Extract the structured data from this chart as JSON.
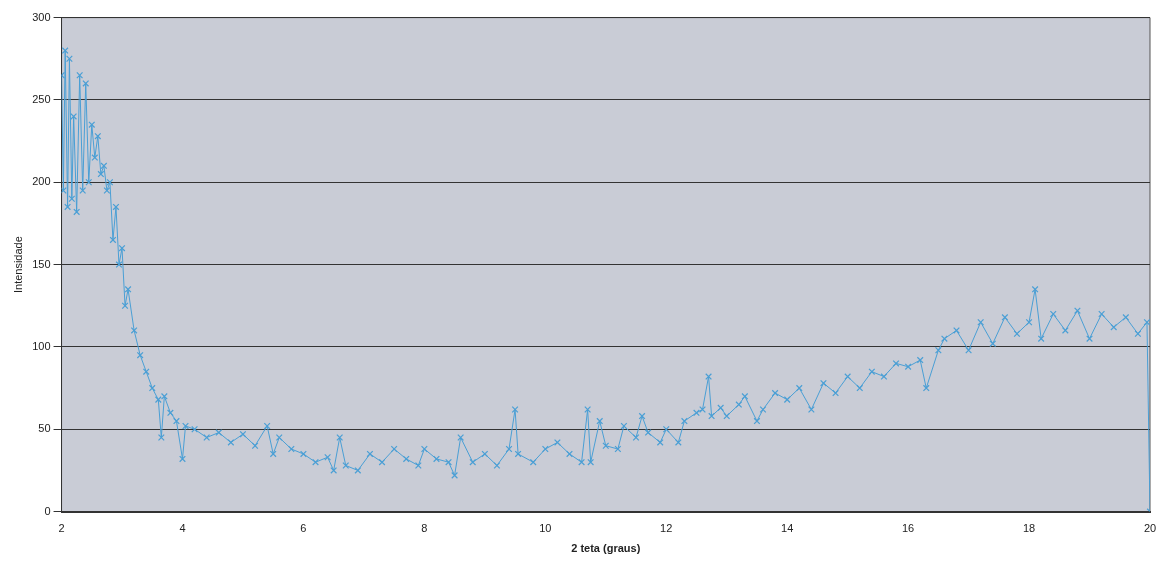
{
  "chart_data": {
    "type": "line",
    "xlabel": "2 teta (graus)",
    "ylabel": "Intensidade",
    "x": [
      2.0,
      2.03,
      2.06,
      2.1,
      2.13,
      2.17,
      2.2,
      2.25,
      2.3,
      2.35,
      2.4,
      2.45,
      2.5,
      2.55,
      2.6,
      2.65,
      2.7,
      2.75,
      2.8,
      2.85,
      2.9,
      2.95,
      3.0,
      3.05,
      3.1,
      3.2,
      3.3,
      3.4,
      3.5,
      3.6,
      3.65,
      3.7,
      3.8,
      3.9,
      4.0,
      4.05,
      4.2,
      4.4,
      4.6,
      4.8,
      5.0,
      5.2,
      5.4,
      5.5,
      5.6,
      5.8,
      6.0,
      6.2,
      6.4,
      6.5,
      6.6,
      6.7,
      6.9,
      7.1,
      7.3,
      7.5,
      7.7,
      7.9,
      8.0,
      8.2,
      8.4,
      8.5,
      8.6,
      8.8,
      9.0,
      9.2,
      9.4,
      9.5,
      9.55,
      9.8,
      10.0,
      10.2,
      10.4,
      10.6,
      10.7,
      10.75,
      10.9,
      11.0,
      11.2,
      11.3,
      11.5,
      11.6,
      11.7,
      11.9,
      12.0,
      12.2,
      12.3,
      12.5,
      12.6,
      12.7,
      12.75,
      12.9,
      13.0,
      13.2,
      13.3,
      13.5,
      13.6,
      13.8,
      14.0,
      14.2,
      14.4,
      14.6,
      14.8,
      15.0,
      15.2,
      15.4,
      15.6,
      15.8,
      16.0,
      16.2,
      16.3,
      16.5,
      16.6,
      16.8,
      17.0,
      17.2,
      17.4,
      17.6,
      17.8,
      18.0,
      18.1,
      18.2,
      18.4,
      18.6,
      18.8,
      19.0,
      19.2,
      19.4,
      19.6,
      19.8,
      19.95,
      20.0
    ],
    "series": [
      {
        "color": "#4a9fd5",
        "values": [
          265,
          195,
          280,
          185,
          275,
          190,
          240,
          182,
          265,
          195,
          260,
          200,
          235,
          215,
          228,
          205,
          210,
          195,
          200,
          165,
          185,
          150,
          160,
          125,
          135,
          110,
          95,
          85,
          75,
          68,
          45,
          70,
          60,
          55,
          32,
          52,
          50,
          45,
          48,
          42,
          47,
          40,
          52,
          35,
          45,
          38,
          35,
          30,
          33,
          25,
          45,
          28,
          25,
          35,
          30,
          38,
          32,
          28,
          38,
          32,
          30,
          22,
          45,
          30,
          35,
          28,
          38,
          62,
          35,
          30,
          38,
          42,
          35,
          30,
          62,
          30,
          55,
          40,
          38,
          52,
          45,
          58,
          48,
          42,
          50,
          42,
          55,
          60,
          62,
          82,
          58,
          63,
          58,
          65,
          70,
          55,
          62,
          72,
          68,
          75,
          62,
          78,
          72,
          82,
          75,
          85,
          82,
          90,
          88,
          92,
          75,
          98,
          105,
          110,
          98,
          115,
          102,
          118,
          108,
          115,
          135,
          105,
          120,
          110,
          122,
          105,
          120,
          112,
          118,
          108,
          115,
          0
        ]
      }
    ],
    "xlim": [
      2,
      20
    ],
    "xticks": [
      2,
      4,
      6,
      8,
      10,
      12,
      14,
      16,
      18,
      20
    ],
    "ylim": [
      0,
      300
    ],
    "yticks": [
      0,
      50,
      100,
      150,
      200,
      250,
      300
    ],
    "grid": "y",
    "marker": "cross",
    "legend": false
  }
}
